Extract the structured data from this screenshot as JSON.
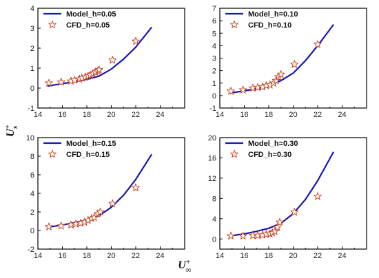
{
  "figure": {
    "ylabel_main": "U",
    "ylabel_sup": "+",
    "ylabel_sub": "s",
    "xlabel_main": "U",
    "xlabel_sup": "+",
    "xlabel_sub": "∞"
  },
  "colors": {
    "model_line": "#1515b8",
    "cfd_marker_stroke": "#c0392b",
    "cfd_marker_fill": "#fffde0"
  },
  "chart_data": [
    {
      "type": "line",
      "xlim": [
        14,
        26
      ],
      "ylim": [
        -1,
        4
      ],
      "xticks": [
        14,
        16,
        18,
        20,
        22,
        24
      ],
      "yticks": [
        -1,
        0,
        1,
        2,
        3,
        4
      ],
      "legend": "top-left",
      "series": [
        {
          "name": "Model_h=0.05",
          "kind": "line",
          "x": [
            14.8,
            16,
            17,
            18,
            19,
            20,
            21,
            22,
            23.3
          ],
          "y": [
            0.1,
            0.22,
            0.32,
            0.44,
            0.6,
            0.95,
            1.45,
            2.05,
            3.05
          ]
        },
        {
          "name": "CFD_h=0.05",
          "kind": "scatter",
          "x": [
            14.9,
            15.9,
            16.7,
            17.0,
            17.4,
            17.6,
            17.9,
            18.1,
            18.3,
            18.5,
            18.7,
            18.9,
            19.0,
            20.1,
            22.0
          ],
          "y": [
            0.25,
            0.3,
            0.35,
            0.4,
            0.45,
            0.5,
            0.55,
            0.6,
            0.65,
            0.72,
            0.8,
            0.85,
            0.92,
            1.4,
            2.35
          ]
        }
      ]
    },
    {
      "type": "line",
      "xlim": [
        14,
        26
      ],
      "ylim": [
        -1,
        7
      ],
      "xticks": [
        14,
        16,
        18,
        20,
        22,
        24
      ],
      "yticks": [
        -1,
        0,
        1,
        2,
        3,
        4,
        5,
        6,
        7
      ],
      "legend": "top-left",
      "series": [
        {
          "name": "Model_h=0.10",
          "kind": "line",
          "x": [
            14.8,
            16,
            17,
            18,
            19,
            20,
            21,
            22,
            23.3
          ],
          "y": [
            0.2,
            0.38,
            0.55,
            0.8,
            1.2,
            1.8,
            2.8,
            4.0,
            5.7
          ]
        },
        {
          "name": "CFD_h=0.10",
          "kind": "scatter",
          "x": [
            14.9,
            15.9,
            16.7,
            17.1,
            17.5,
            17.8,
            18.1,
            18.4,
            18.6,
            18.8,
            19.0,
            20.1,
            22.0
          ],
          "y": [
            0.35,
            0.45,
            0.6,
            0.65,
            0.7,
            0.8,
            0.85,
            1.0,
            1.2,
            1.5,
            1.7,
            2.5,
            4.1
          ]
        }
      ]
    },
    {
      "type": "line",
      "xlim": [
        14,
        26
      ],
      "ylim": [
        -2,
        10
      ],
      "xticks": [
        14,
        16,
        18,
        20,
        22,
        24
      ],
      "yticks": [
        -2,
        0,
        2,
        4,
        6,
        8,
        10
      ],
      "legend": "top-left",
      "series": [
        {
          "name": "Model_h=0.15",
          "kind": "line",
          "x": [
            14.8,
            16,
            17,
            18,
            19,
            20,
            21,
            22,
            23.3
          ],
          "y": [
            0.35,
            0.6,
            0.85,
            1.1,
            1.6,
            2.5,
            3.8,
            5.5,
            8.2
          ]
        },
        {
          "name": "CFD_h=0.15",
          "kind": "scatter",
          "x": [
            14.9,
            15.9,
            16.7,
            17.1,
            17.5,
            17.8,
            18.1,
            18.4,
            18.6,
            18.9,
            19.1,
            20.1,
            22.0
          ],
          "y": [
            0.4,
            0.5,
            0.6,
            0.7,
            0.8,
            0.9,
            1.1,
            1.3,
            1.4,
            1.8,
            2.0,
            2.9,
            4.6
          ]
        }
      ]
    },
    {
      "type": "line",
      "xlim": [
        14,
        26
      ],
      "ylim": [
        -2,
        20
      ],
      "xticks": [
        14,
        16,
        18,
        20,
        22,
        24
      ],
      "yticks": [
        0,
        4,
        8,
        12,
        16,
        20
      ],
      "legend": "top-left",
      "series": [
        {
          "name": "Model_h=0.30",
          "kind": "line",
          "x": [
            14.8,
            16,
            17,
            18,
            19,
            20,
            21,
            22,
            23.3
          ],
          "y": [
            0.6,
            1.0,
            1.5,
            2.1,
            3.1,
            5.0,
            7.8,
            11.5,
            17.2
          ]
        },
        {
          "name": "CFD_h=0.30",
          "kind": "scatter",
          "x": [
            14.9,
            15.9,
            16.7,
            17.1,
            17.5,
            17.8,
            18.1,
            18.3,
            18.5,
            18.7,
            18.9,
            20.1,
            22.0
          ],
          "y": [
            0.6,
            0.6,
            0.7,
            0.7,
            0.8,
            0.9,
            1.0,
            1.2,
            1.5,
            2.3,
            3.3,
            5.3,
            8.4
          ]
        }
      ]
    }
  ]
}
